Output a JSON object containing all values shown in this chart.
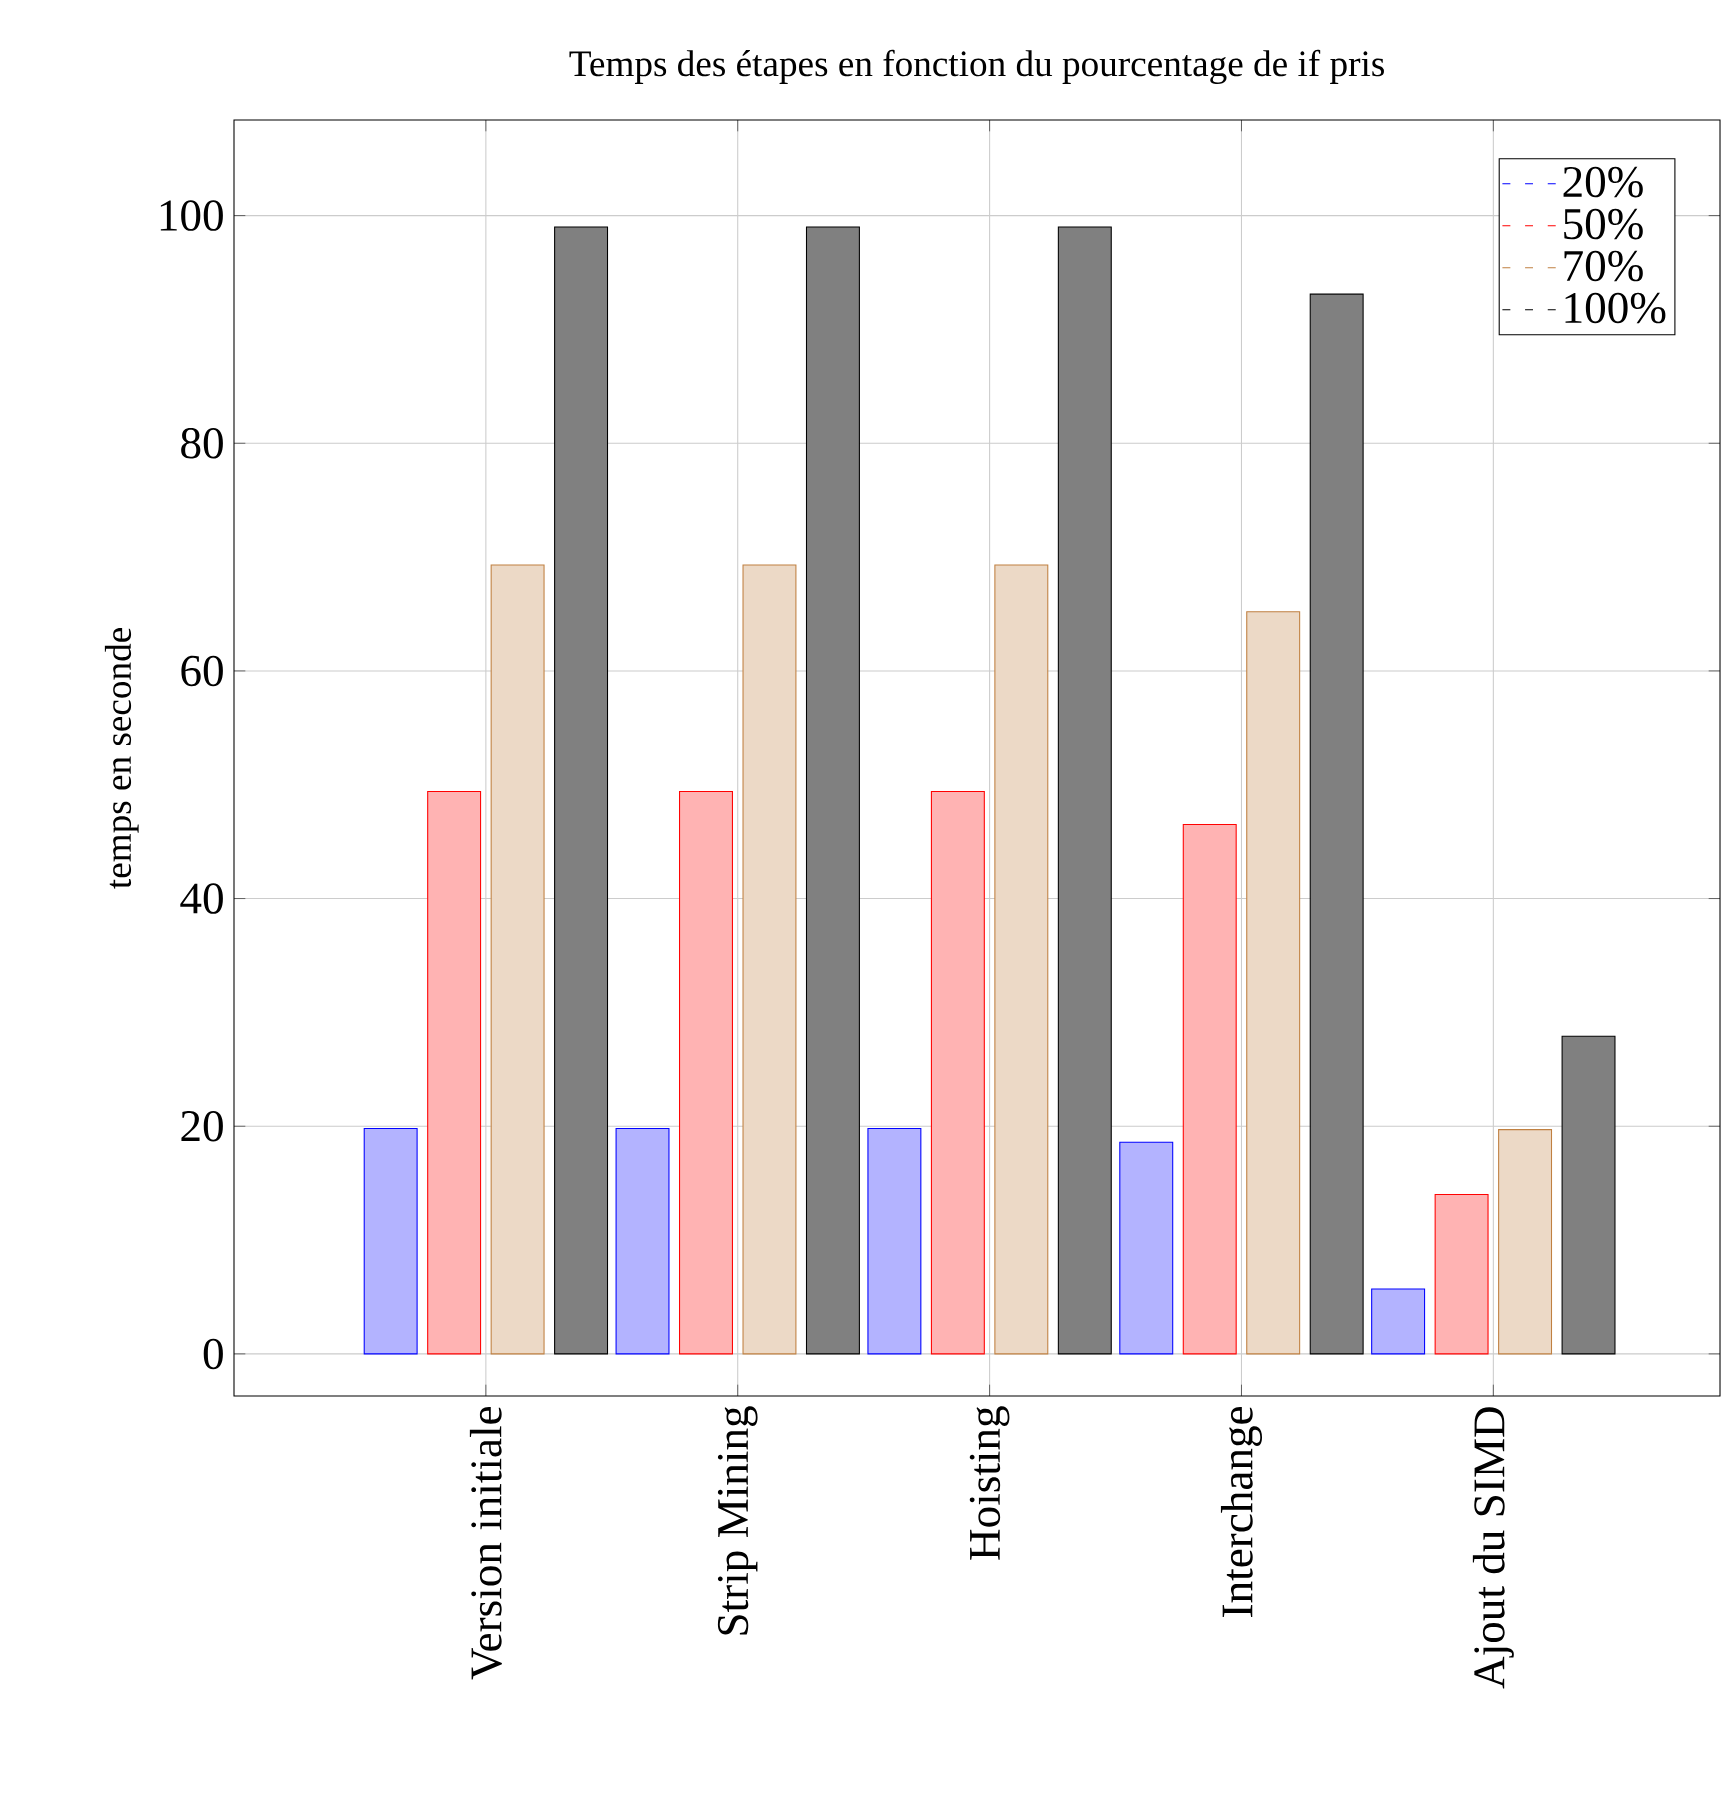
{
  "chart_data": {
    "type": "bar",
    "title": "Temps des étapes en fonction du pourcentage de if pris",
    "ylabel": "temps en seconde",
    "categories": [
      "Version initiale",
      "Strip Mining",
      "Hoisting",
      "Interchange",
      "Ajout du SIMD"
    ],
    "series": [
      {
        "name": "20%",
        "color": "#b3b3ff",
        "values": [
          19.8,
          19.8,
          19.8,
          18.6,
          5.7
        ]
      },
      {
        "name": "50%",
        "color": "#ffb3b3",
        "values": [
          49.4,
          49.4,
          49.4,
          46.5,
          14.0
        ]
      },
      {
        "name": "70%",
        "color": "#ecd9c6",
        "values": [
          69.3,
          69.3,
          69.3,
          65.2,
          19.7
        ]
      },
      {
        "name": "100%",
        "color": "#808080",
        "values": [
          99.0,
          99.0,
          99.0,
          93.1,
          27.9
        ]
      }
    ],
    "ylim": [
      -3.7,
      108.4
    ],
    "yticks": [
      0,
      20,
      40,
      60,
      80,
      100
    ],
    "grid": true,
    "legend": "top right"
  }
}
